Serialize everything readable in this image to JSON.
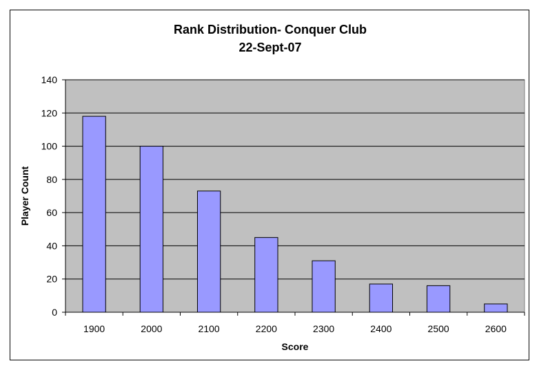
{
  "chart_data": {
    "type": "bar",
    "title": "Rank Distribution- Conquer Club",
    "subtitle": "22-Sept-07",
    "xlabel": "Score",
    "ylabel": "Player Count",
    "categories": [
      "1900",
      "2000",
      "2100",
      "2200",
      "2300",
      "2400",
      "2500",
      "2600"
    ],
    "values": [
      118,
      100,
      73,
      45,
      31,
      17,
      16,
      5
    ],
    "ylim": [
      0,
      140
    ],
    "yticks": [
      0,
      20,
      40,
      60,
      80,
      100,
      120,
      140
    ],
    "grid": true,
    "legend": "none",
    "colors": {
      "bar_fill": "#9999ff",
      "bar_stroke": "#000000",
      "plot_background": "#c0c0c0",
      "gridline": "#000000"
    }
  }
}
